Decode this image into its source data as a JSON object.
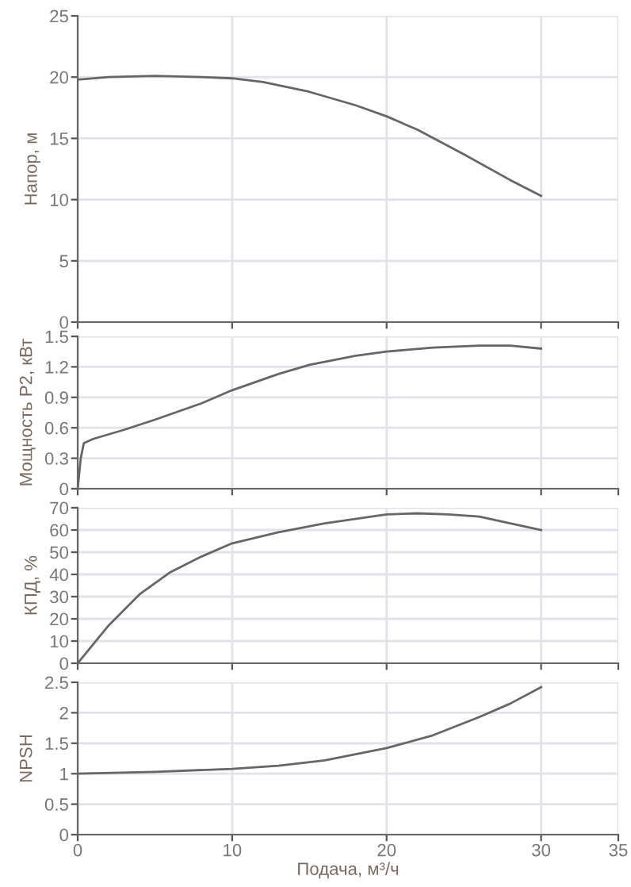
{
  "chart_data": [
    {
      "type": "line",
      "ylabel": "Напор, м",
      "x": [
        0,
        2,
        5,
        8,
        10,
        12,
        15,
        18,
        20,
        22,
        25,
        28,
        30
      ],
      "series": [
        {
          "color": "#666666",
          "values": [
            19.8,
            20.0,
            20.1,
            20.0,
            19.9,
            19.6,
            18.8,
            17.7,
            16.8,
            15.7,
            13.7,
            11.6,
            10.3
          ]
        }
      ],
      "xlim": [
        0,
        35
      ],
      "xticks": [
        0,
        10,
        20,
        30,
        35
      ],
      "ylim": [
        0,
        25
      ],
      "yticks": [
        0,
        5,
        10,
        15,
        20,
        25
      ],
      "grid": true,
      "tick_labels": "y"
    },
    {
      "type": "line",
      "ylabel": "Мощность P2, кВт",
      "x": [
        0,
        0.2,
        0.4,
        1,
        3,
        5,
        8,
        10,
        13,
        15,
        18,
        20,
        23,
        26,
        28,
        30
      ],
      "series": [
        {
          "color": "#666666",
          "values": [
            0,
            0.3,
            0.45,
            0.49,
            0.58,
            0.68,
            0.84,
            0.97,
            1.13,
            1.22,
            1.31,
            1.35,
            1.39,
            1.41,
            1.41,
            1.38
          ]
        }
      ],
      "xlim": [
        0,
        35
      ],
      "xticks": [
        0,
        10,
        20,
        30,
        35
      ],
      "ylim": [
        0,
        1.5
      ],
      "yticks": [
        0,
        0.3,
        0.6,
        0.9,
        1.2,
        1.5
      ],
      "grid": true,
      "tick_labels": "y"
    },
    {
      "type": "line",
      "ylabel": "КПД, %",
      "x": [
        0,
        2,
        4,
        6,
        8,
        10,
        13,
        16,
        20,
        22,
        24,
        26,
        28,
        30
      ],
      "series": [
        {
          "color": "#666666",
          "values": [
            0,
            17,
            31,
            41,
            48,
            54,
            59,
            63,
            67,
            67.5,
            67,
            66,
            63,
            60
          ]
        }
      ],
      "xlim": [
        0,
        35
      ],
      "xticks": [
        0,
        10,
        20,
        30,
        35
      ],
      "ylim": [
        0,
        70
      ],
      "yticks": [
        0,
        10,
        20,
        30,
        40,
        50,
        60,
        70
      ],
      "grid": true,
      "tick_labels": "y"
    },
    {
      "type": "line",
      "ylabel": "NPSH",
      "xlabel": "Подача, м³/ч",
      "x": [
        0,
        5,
        10,
        13,
        16,
        20,
        23,
        26,
        28,
        30
      ],
      "series": [
        {
          "color": "#666666",
          "values": [
            1.0,
            1.03,
            1.08,
            1.13,
            1.22,
            1.42,
            1.63,
            1.93,
            2.15,
            2.42
          ]
        }
      ],
      "xlim": [
        0,
        35
      ],
      "xticks": [
        0,
        10,
        20,
        30,
        35
      ],
      "ylim": [
        0,
        2.5
      ],
      "yticks": [
        0,
        0.5,
        1,
        1.5,
        2,
        2.5
      ],
      "grid": true
    }
  ]
}
